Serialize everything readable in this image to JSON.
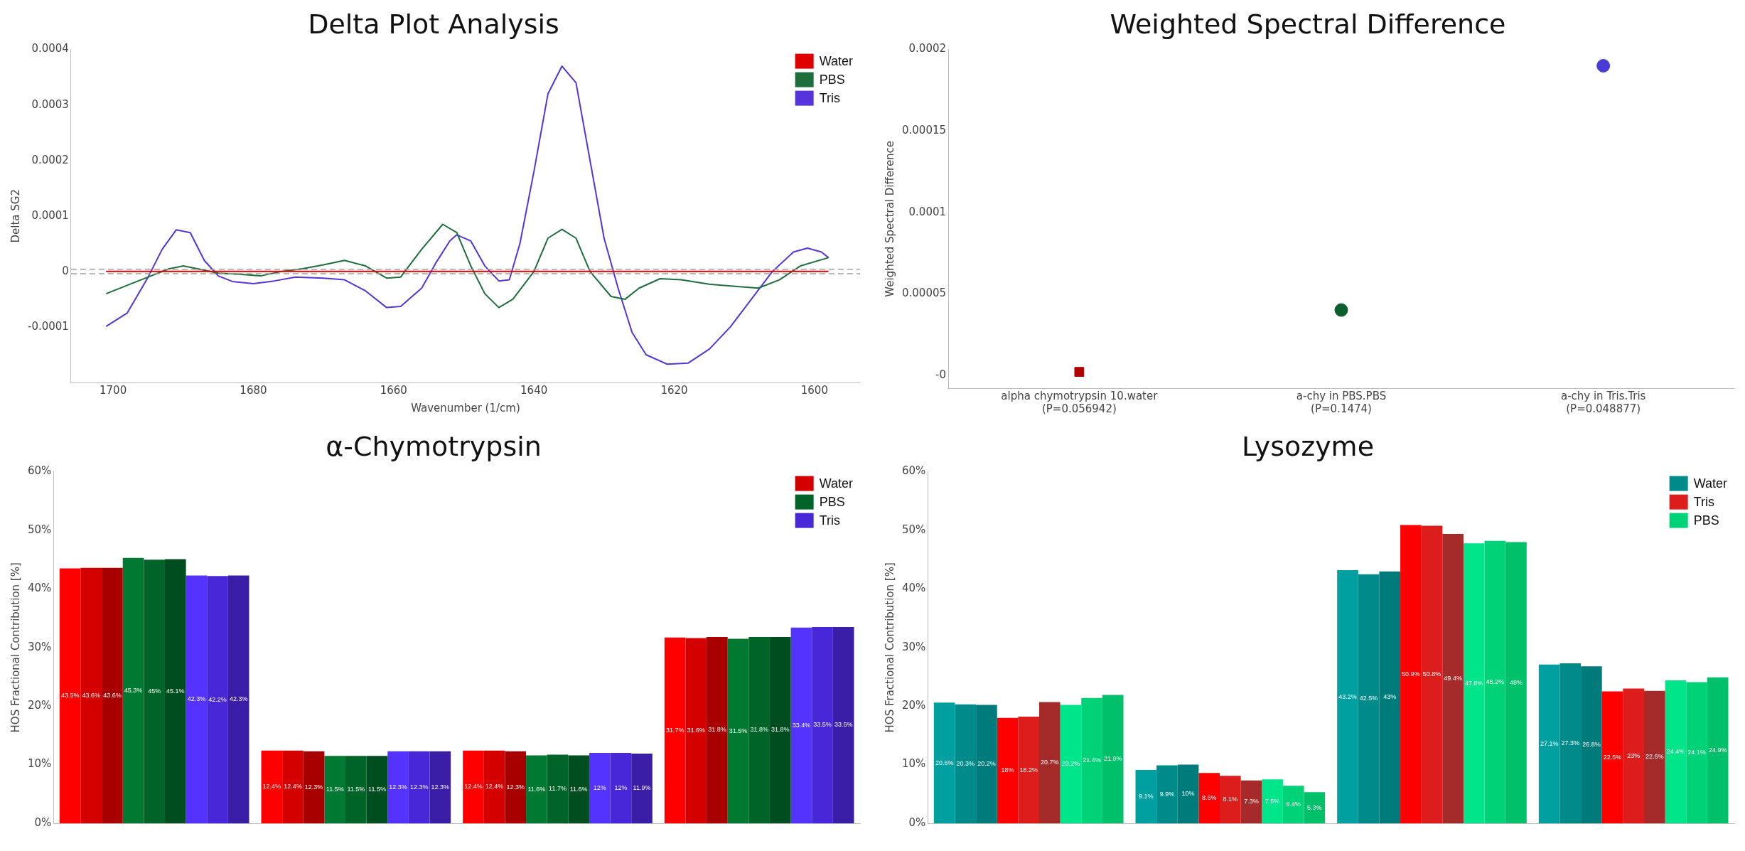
{
  "chart_data": [
    {
      "type": "line",
      "title": "Delta Plot Analysis",
      "xlabel": "Wavenumber (1/cm)",
      "ylabel": "Delta SG2",
      "legend": "top right",
      "marker": "none",
      "line_style": "solid",
      "xlim": [
        1706,
        1593.5
      ],
      "xticks": [
        1700,
        1680,
        1660,
        1640,
        1620,
        1600
      ],
      "ylim": [
        -0.0002,
        0.0004
      ],
      "yticks": [
        -0.0001,
        0,
        0.0001,
        0.0002,
        0.0003,
        0.0004
      ],
      "ref_lines": [
        {
          "axis": "y",
          "value": 4e-06,
          "color": "#a0a0a0",
          "line_style": "dashed"
        },
        {
          "axis": "y",
          "value": -4e-06,
          "color": "#a0a0a0",
          "line_style": "dashed"
        }
      ],
      "series": [
        {
          "name": "Water",
          "color": "#e00000",
          "x": [
            1701,
            1690,
            1680,
            1670,
            1660,
            1650,
            1640,
            1630,
            1620,
            1610,
            1598
          ],
          "values": [
            0,
            0,
            0,
            0,
            0,
            0,
            0,
            0,
            0,
            0,
            0
          ]
        },
        {
          "name": "PBS",
          "color": "#1e6e3c",
          "x": [
            1701,
            1698,
            1695,
            1692,
            1690,
            1688,
            1685,
            1682,
            1679,
            1676,
            1673,
            1670,
            1667,
            1664,
            1661,
            1659,
            1656,
            1653,
            1651,
            1649,
            1647,
            1645,
            1643,
            1640,
            1638,
            1636,
            1634,
            1632,
            1629,
            1627,
            1625,
            1622,
            1619,
            1615,
            1611,
            1608,
            1605,
            1602,
            1598
          ],
          "values": [
            -4e-05,
            -2.5e-05,
            -1e-05,
            5e-06,
            1e-05,
            5e-06,
            -3e-06,
            -5e-06,
            -8e-06,
            0,
            5e-06,
            1.2e-05,
            2e-05,
            1e-05,
            -1.2e-05,
            -1e-05,
            4e-05,
            8.5e-05,
            7e-05,
            1e-05,
            -4e-05,
            -6.5e-05,
            -5e-05,
            0,
            6e-05,
            7.6e-05,
            6e-05,
            0,
            -4.5e-05,
            -5e-05,
            -3e-05,
            -1.3e-05,
            -1.5e-05,
            -2.3e-05,
            -2.7e-05,
            -3e-05,
            -1.5e-05,
            1e-05,
            2.5e-05
          ]
        },
        {
          "name": "Tris",
          "color": "#5533dd",
          "x": [
            1701,
            1698,
            1695,
            1693,
            1691,
            1689,
            1687,
            1685,
            1683,
            1680,
            1677,
            1674,
            1670,
            1667,
            1664,
            1661,
            1659,
            1656,
            1654,
            1652,
            1651,
            1649,
            1647,
            1645,
            1643.5,
            1642,
            1640,
            1638,
            1636,
            1634,
            1632,
            1630,
            1628,
            1626,
            1624,
            1621,
            1618,
            1615,
            1612,
            1609,
            1606,
            1603,
            1601,
            1599,
            1598
          ],
          "values": [
            -9.9e-05,
            -7.5e-05,
            -1e-05,
            4e-05,
            7.5e-05,
            7e-05,
            2e-05,
            -8e-06,
            -1.8e-05,
            -2.2e-05,
            -1.7e-05,
            -1e-05,
            -1.2e-05,
            -1.5e-05,
            -3.5e-05,
            -6.5e-05,
            -6.3e-05,
            -3e-05,
            1.5e-05,
            5.5e-05,
            6.6e-05,
            5.5e-05,
            1e-05,
            -1.7e-05,
            -1.5e-05,
            5e-05,
            0.00018,
            0.00032,
            0.00037,
            0.00034,
            0.0002,
            6e-05,
            -3e-05,
            -0.00011,
            -0.00015,
            -0.000167,
            -0.000165,
            -0.00014,
            -0.0001,
            -5e-05,
            0,
            3.5e-05,
            4.2e-05,
            3.5e-05,
            2.5e-05
          ]
        }
      ]
    },
    {
      "type": "scatter",
      "title": "Weighted Spectral Difference",
      "ylabel": "Weighted Spectral Difference",
      "categories": [
        "alpha chymotrypsin 10.water\n(P=0.056942)",
        "a-chy in PBS.PBS\n(P=0.1474)",
        "a-chy in Tris.Tris\n(P=0.048877)"
      ],
      "ylim": [
        -8e-06,
        0.0002
      ],
      "yticks": [
        {
          "value": 0,
          "label": "-0"
        },
        {
          "value": 5e-05,
          "label": "0.00005"
        },
        0.0001,
        0.00015,
        0.0002
      ],
      "series": [
        {
          "color": "#b00000",
          "marker": "square",
          "x": [
            "alpha chymotrypsin 10.water\n(P=0.056942)"
          ],
          "values": [
            2e-06
          ]
        },
        {
          "color": "#0b5e2e",
          "marker": "circle",
          "x": [
            "a-chy in PBS.PBS\n(P=0.1474)"
          ],
          "values": [
            4e-05
          ]
        },
        {
          "color": "#4b3bd6",
          "marker": "circle",
          "x": [
            "a-chy in Tris.Tris\n(P=0.048877)"
          ],
          "values": [
            0.00019
          ]
        }
      ]
    },
    {
      "type": "bar",
      "title": "α-Chymotrypsin",
      "ylabel": "HOS Fractional Contribution [%]",
      "legend": "top right",
      "categories": [
        null,
        null,
        null,
        null
      ],
      "ylim": [
        0,
        60
      ],
      "yticks": [
        {
          "value": 0,
          "label": "0%"
        },
        {
          "value": 10,
          "label": "10%"
        },
        {
          "value": 20,
          "label": "20%"
        },
        {
          "value": 30,
          "label": "30%"
        },
        {
          "value": 40,
          "label": "40%"
        },
        {
          "value": 50,
          "label": "50%"
        },
        {
          "value": 60,
          "label": "60%"
        }
      ],
      "series": [
        {
          "color": "#ff0000",
          "values": [
            43.5,
            12.4,
            12.4,
            31.7
          ],
          "value_labels": [
            "43.5%",
            "12.4%",
            "12.4%",
            "31.7%"
          ]
        },
        {
          "name": "Water",
          "color": "#d40000",
          "values": [
            43.6,
            12.4,
            12.4,
            31.6
          ],
          "value_labels": [
            "43.6%",
            "12.4%",
            "12.4%",
            "31.6%"
          ]
        },
        {
          "color": "#a80000",
          "values": [
            43.6,
            12.3,
            12.3,
            31.8
          ],
          "value_labels": [
            "43.6%",
            "12.3%",
            "12.3%",
            "31.8%"
          ]
        },
        {
          "color": "#007a33",
          "values": [
            45.3,
            11.5,
            11.6,
            31.5
          ],
          "value_labels": [
            "45.3%",
            "11.5%",
            "11.6%",
            "31.5%"
          ]
        },
        {
          "name": "PBS",
          "color": "#006428",
          "values": [
            45,
            11.5,
            11.7,
            31.8
          ],
          "value_labels": [
            "45%",
            "11.5%",
            "11.7%",
            "31.8%"
          ]
        },
        {
          "color": "#004d20",
          "values": [
            45.1,
            11.5,
            11.6,
            31.8
          ],
          "value_labels": [
            "45.1%",
            "11.5%",
            "11.6%",
            "31.8%"
          ]
        },
        {
          "color": "#5533ff",
          "values": [
            42.3,
            12.3,
            12,
            33.4
          ],
          "value_labels": [
            "42.3%",
            "12.3%",
            "12%",
            "33.4%"
          ]
        },
        {
          "name": "Tris",
          "color": "#4727d8",
          "values": [
            42.2,
            12.3,
            12,
            33.5
          ],
          "value_labels": [
            "42.2%",
            "12.3%",
            "12%",
            "33.5%"
          ]
        },
        {
          "color": "#3a1ea8",
          "values": [
            42.3,
            12.3,
            11.9,
            33.5
          ],
          "value_labels": [
            "42.3%",
            "12.3%",
            "11.9%",
            "33.5%"
          ]
        }
      ]
    },
    {
      "type": "bar",
      "title": "Lysozyme",
      "ylabel": "HOS Fractional Contribution [%]",
      "legend": "top right",
      "categories": [
        null,
        null,
        null,
        null
      ],
      "ylim": [
        0,
        60
      ],
      "yticks": [
        {
          "value": 0,
          "label": "0%"
        },
        {
          "value": 10,
          "label": "10%"
        },
        {
          "value": 20,
          "label": "20%"
        },
        {
          "value": 30,
          "label": "30%"
        },
        {
          "value": 40,
          "label": "40%"
        },
        {
          "value": 50,
          "label": "50%"
        },
        {
          "value": 60,
          "label": "60%"
        }
      ],
      "series": [
        {
          "color": "#00a0a0",
          "values": [
            20.6,
            9.1,
            43.2,
            27.1
          ],
          "value_labels": [
            "20.6%",
            "9.1%",
            "43.2%",
            "27.1%"
          ]
        },
        {
          "name": "Water",
          "color": "#008b8b",
          "values": [
            20.3,
            9.9,
            42.5,
            27.3
          ],
          "value_labels": [
            "20.3%",
            "9.9%",
            "42.5%",
            "27.3%"
          ]
        },
        {
          "color": "#007b7b",
          "values": [
            20.2,
            10,
            43,
            26.8
          ],
          "value_labels": [
            "20.2%",
            "10%",
            "43%",
            "26.8%"
          ]
        },
        {
          "color": "#ff0000",
          "values": [
            18,
            8.6,
            50.9,
            22.5
          ],
          "value_labels": [
            "18%",
            "8.6%",
            "50.9%",
            "22.5%"
          ]
        },
        {
          "name": "Tris",
          "color": "#dd1c1c",
          "values": [
            18.2,
            8.1,
            50.8,
            23
          ],
          "value_labels": [
            "18.2%",
            "8.1%",
            "50.8%",
            "23%"
          ]
        },
        {
          "color": "#a52a2a",
          "values": [
            20.7,
            7.3,
            49.4,
            22.6
          ],
          "value_labels": [
            "20.7%",
            "7.3%",
            "49.4%",
            "22.6%"
          ]
        },
        {
          "color": "#00e58a",
          "values": [
            20.2,
            7.5,
            47.8,
            24.4
          ],
          "value_labels": [
            "20.2%",
            "7.5%",
            "47.8%",
            "24.4%"
          ]
        },
        {
          "name": "PBS",
          "color": "#00d377",
          "values": [
            21.4,
            6.4,
            48.2,
            24.1
          ],
          "value_labels": [
            "21.4%",
            "6.4%",
            "48.2%",
            "24.1%"
          ]
        },
        {
          "color": "#00c06a",
          "values": [
            21.9,
            5.3,
            48,
            24.9
          ],
          "value_labels": [
            "21.9%",
            "5.3%",
            "48%",
            "24.9%"
          ]
        }
      ]
    }
  ]
}
